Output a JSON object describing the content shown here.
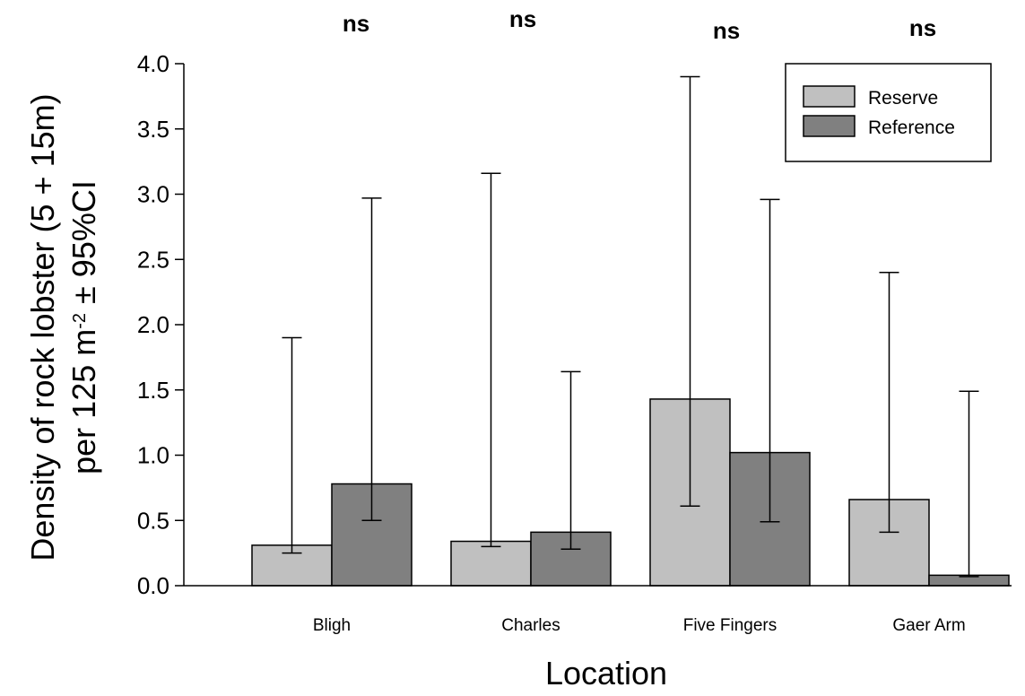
{
  "chart_data": {
    "type": "bar",
    "xlabel": "Location",
    "ylabel_line1": "Density of rock lobster (5 + 15m)",
    "ylabel_line2_prefix": "per 125 m",
    "ylabel_line2_superscript": "-2",
    "ylabel_line2_suffix": " ± 95%CI",
    "ylim": [
      0,
      4.0
    ],
    "yticks": [
      "0.0",
      "0.5",
      "1.0",
      "1.5",
      "2.0",
      "2.5",
      "3.0",
      "3.5",
      "4.0"
    ],
    "categories": [
      "Bligh",
      "Charles",
      "Five Fingers",
      "Gaer Arm"
    ],
    "significance": [
      "ns",
      "ns",
      "ns",
      "ns"
    ],
    "legend_position": "top-right",
    "series": [
      {
        "name": "Reserve",
        "color": "#c0c0c0",
        "values": [
          0.31,
          0.34,
          1.43,
          0.66
        ],
        "ci_low": [
          0.25,
          0.3,
          0.61,
          0.41
        ],
        "ci_high": [
          1.9,
          3.16,
          3.9,
          2.4
        ]
      },
      {
        "name": "Reference",
        "color": "#808080",
        "values": [
          0.78,
          0.41,
          1.02,
          0.08
        ],
        "ci_low": [
          0.5,
          0.28,
          0.49,
          0.07
        ],
        "ci_high": [
          2.97,
          1.64,
          2.96,
          1.49
        ]
      }
    ]
  }
}
